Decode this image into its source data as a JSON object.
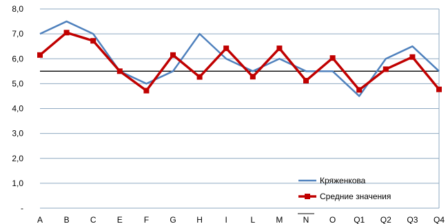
{
  "chart_data": {
    "type": "line",
    "categories": [
      "A",
      "B",
      "C",
      "E",
      "F",
      "G",
      "H",
      "I",
      "L",
      "M",
      "N",
      "O",
      "Q1",
      "Q2",
      "Q3",
      "Q4"
    ],
    "series": [
      {
        "name": "Кряженкова",
        "color": "#4F81BD",
        "marker": "none",
        "values": [
          7.0,
          7.5,
          7.0,
          5.5,
          5.0,
          5.5,
          7.0,
          6.0,
          5.5,
          6.0,
          5.5,
          5.5,
          4.5,
          6.0,
          6.5,
          5.5
        ]
      },
      {
        "name": "Средние значения",
        "color": "#C00000",
        "marker": "square",
        "values": [
          6.15,
          7.05,
          6.72,
          5.5,
          4.72,
          6.15,
          5.27,
          6.42,
          5.28,
          6.42,
          5.12,
          6.03,
          4.75,
          5.58,
          6.07,
          4.77
        ]
      }
    ],
    "reference_line": {
      "value": 5.5,
      "color": "#000000"
    },
    "ylim": [
      0,
      8
    ],
    "yticks": [
      "-",
      "1,0",
      "2,0",
      "3,0",
      "4,0",
      "5,0",
      "6,0",
      "7,0",
      "8,0"
    ],
    "overlined_category": "N",
    "grid": true,
    "grid_color": "#8EA9C1",
    "legend_position": "bottom-right"
  }
}
